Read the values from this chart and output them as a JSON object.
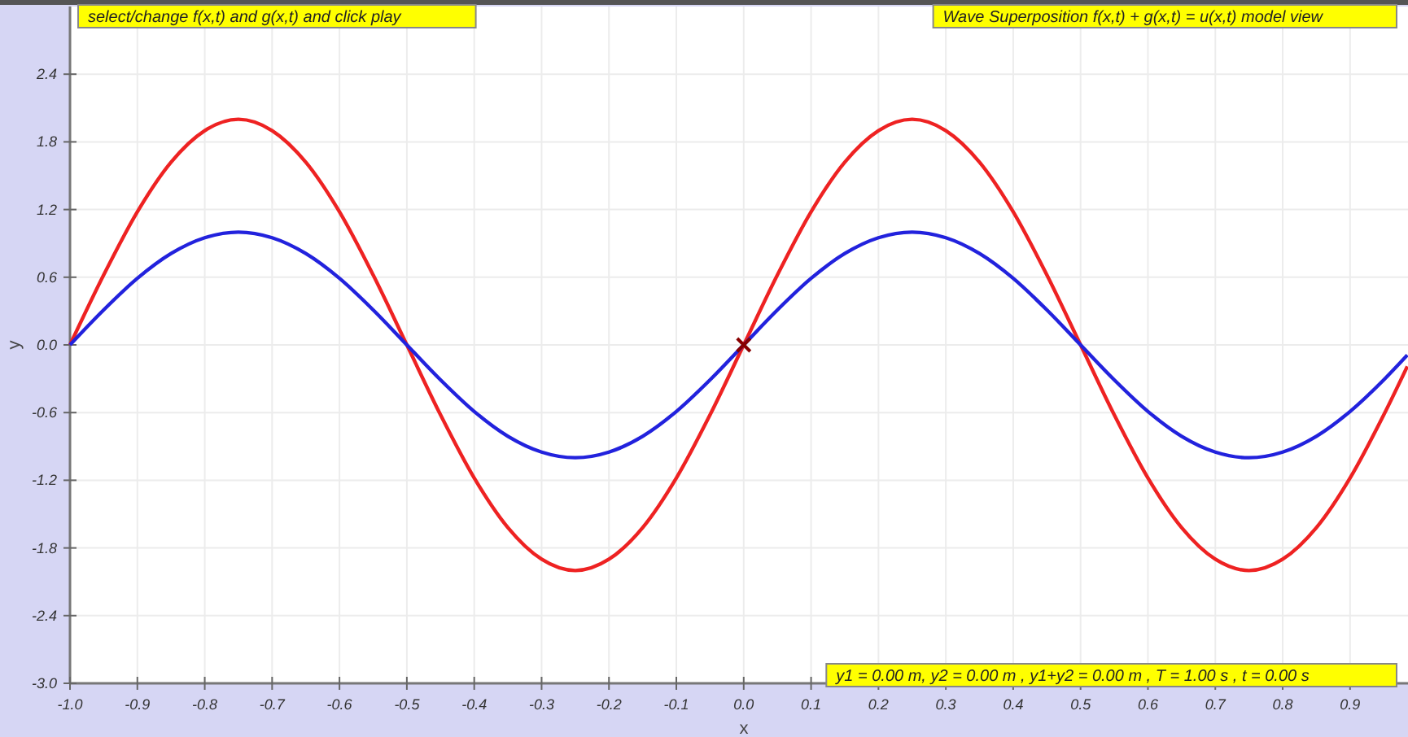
{
  "chart_data": {
    "type": "line",
    "xlabel": "x",
    "ylabel": "y",
    "x": [
      -1.0,
      -0.95,
      -0.9,
      -0.85,
      -0.8,
      -0.75,
      -0.7,
      -0.65,
      -0.6,
      -0.55,
      -0.5,
      -0.45,
      -0.4,
      -0.35,
      -0.3,
      -0.25,
      -0.2,
      -0.15,
      -0.1,
      -0.05,
      0.0,
      0.05,
      0.1,
      0.15,
      0.2,
      0.25,
      0.3,
      0.35,
      0.4,
      0.45,
      0.5,
      0.55,
      0.6,
      0.65,
      0.7,
      0.75,
      0.8,
      0.85,
      0.9,
      0.95,
      0.985
    ],
    "series": [
      {
        "color": "#ee2222",
        "values": [
          0,
          0.62,
          1.18,
          1.62,
          1.9,
          2,
          1.9,
          1.62,
          1.18,
          0.62,
          0,
          -0.62,
          -1.18,
          -1.62,
          -1.9,
          -2,
          -1.9,
          -1.62,
          -1.18,
          -0.62,
          0,
          0.62,
          1.18,
          1.62,
          1.9,
          2,
          1.9,
          1.62,
          1.18,
          0.62,
          0,
          -0.62,
          -1.18,
          -1.62,
          -1.9,
          -2,
          -1.9,
          -1.62,
          -1.18,
          -0.62,
          -0.19
        ]
      },
      {
        "color": "#2222dd",
        "values": [
          0,
          0.31,
          0.59,
          0.81,
          0.95,
          1,
          0.95,
          0.81,
          0.59,
          0.31,
          0,
          -0.31,
          -0.59,
          -0.81,
          -0.95,
          -1,
          -0.95,
          -0.81,
          -0.59,
          -0.31,
          0,
          0.31,
          0.59,
          0.81,
          0.95,
          1,
          0.95,
          0.81,
          0.59,
          0.31,
          0,
          -0.31,
          -0.59,
          -0.81,
          -0.95,
          -1,
          -0.95,
          -0.81,
          -0.59,
          -0.31,
          -0.09
        ]
      },
      {
        "type": "scatter",
        "marker": "cross",
        "color": "#880000",
        "x": [
          0.0
        ],
        "values": [
          0
        ]
      }
    ],
    "xlim": [
      -1.0,
      0.986
    ],
    "ylim": [
      -3.0,
      3.0
    ],
    "xticks": [
      {
        "value": -1,
        "label": "-1.0"
      },
      -0.9,
      -0.8,
      -0.7,
      -0.6,
      -0.5,
      -0.4,
      -0.3,
      -0.2,
      -0.1,
      {
        "value": 0,
        "label": "0.0"
      },
      0.1,
      0.2,
      0.3,
      0.4,
      0.5,
      0.6,
      0.7,
      0.8,
      0.9
    ],
    "yticks": [
      {
        "value": -3,
        "label": "-3.0"
      },
      -2.4,
      -1.8,
      -1.2,
      -0.6,
      {
        "value": 0,
        "label": "0.0"
      },
      0.6,
      1.2,
      1.8,
      2.4
    ],
    "grid": true,
    "annotations": [
      "select/change f(x,t) and g(x,t) and click play",
      "Wave Superposition f(x,t) + g(x,t) = u(x,t) model view",
      "y1 = 0.00 m, y2 = 0.00 m , y1+y2 = 0.00 m , T = 1.00 s , t = 0.00 s"
    ]
  }
}
